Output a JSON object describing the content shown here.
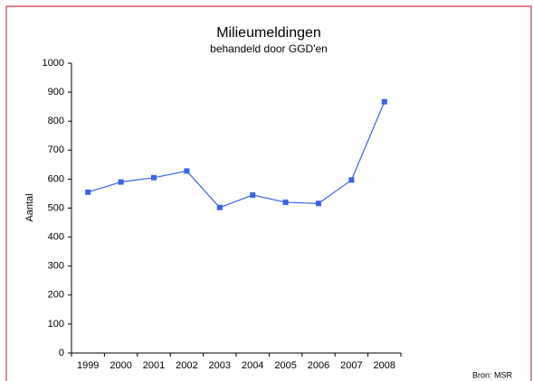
{
  "chart_data": {
    "type": "line",
    "title": "Milieumeldingen",
    "subtitle": "behandeld door GGD'en",
    "y_label": "Aantal",
    "source": "Bron: MSR",
    "categories": [
      "1999",
      "2000",
      "2001",
      "2002",
      "2003",
      "2004",
      "2005",
      "2006",
      "2007",
      "2008"
    ],
    "series": [
      {
        "name": "Milieumeldingen",
        "color": "#3a63e6",
        "values": [
          555,
          590,
          605,
          628,
          502,
          545,
          520,
          516,
          597,
          867
        ]
      }
    ],
    "ylim": [
      0,
      1000
    ],
    "yticks": [
      0,
      100,
      200,
      300,
      400,
      500,
      600,
      700,
      800,
      900,
      1000
    ],
    "grid": false
  }
}
